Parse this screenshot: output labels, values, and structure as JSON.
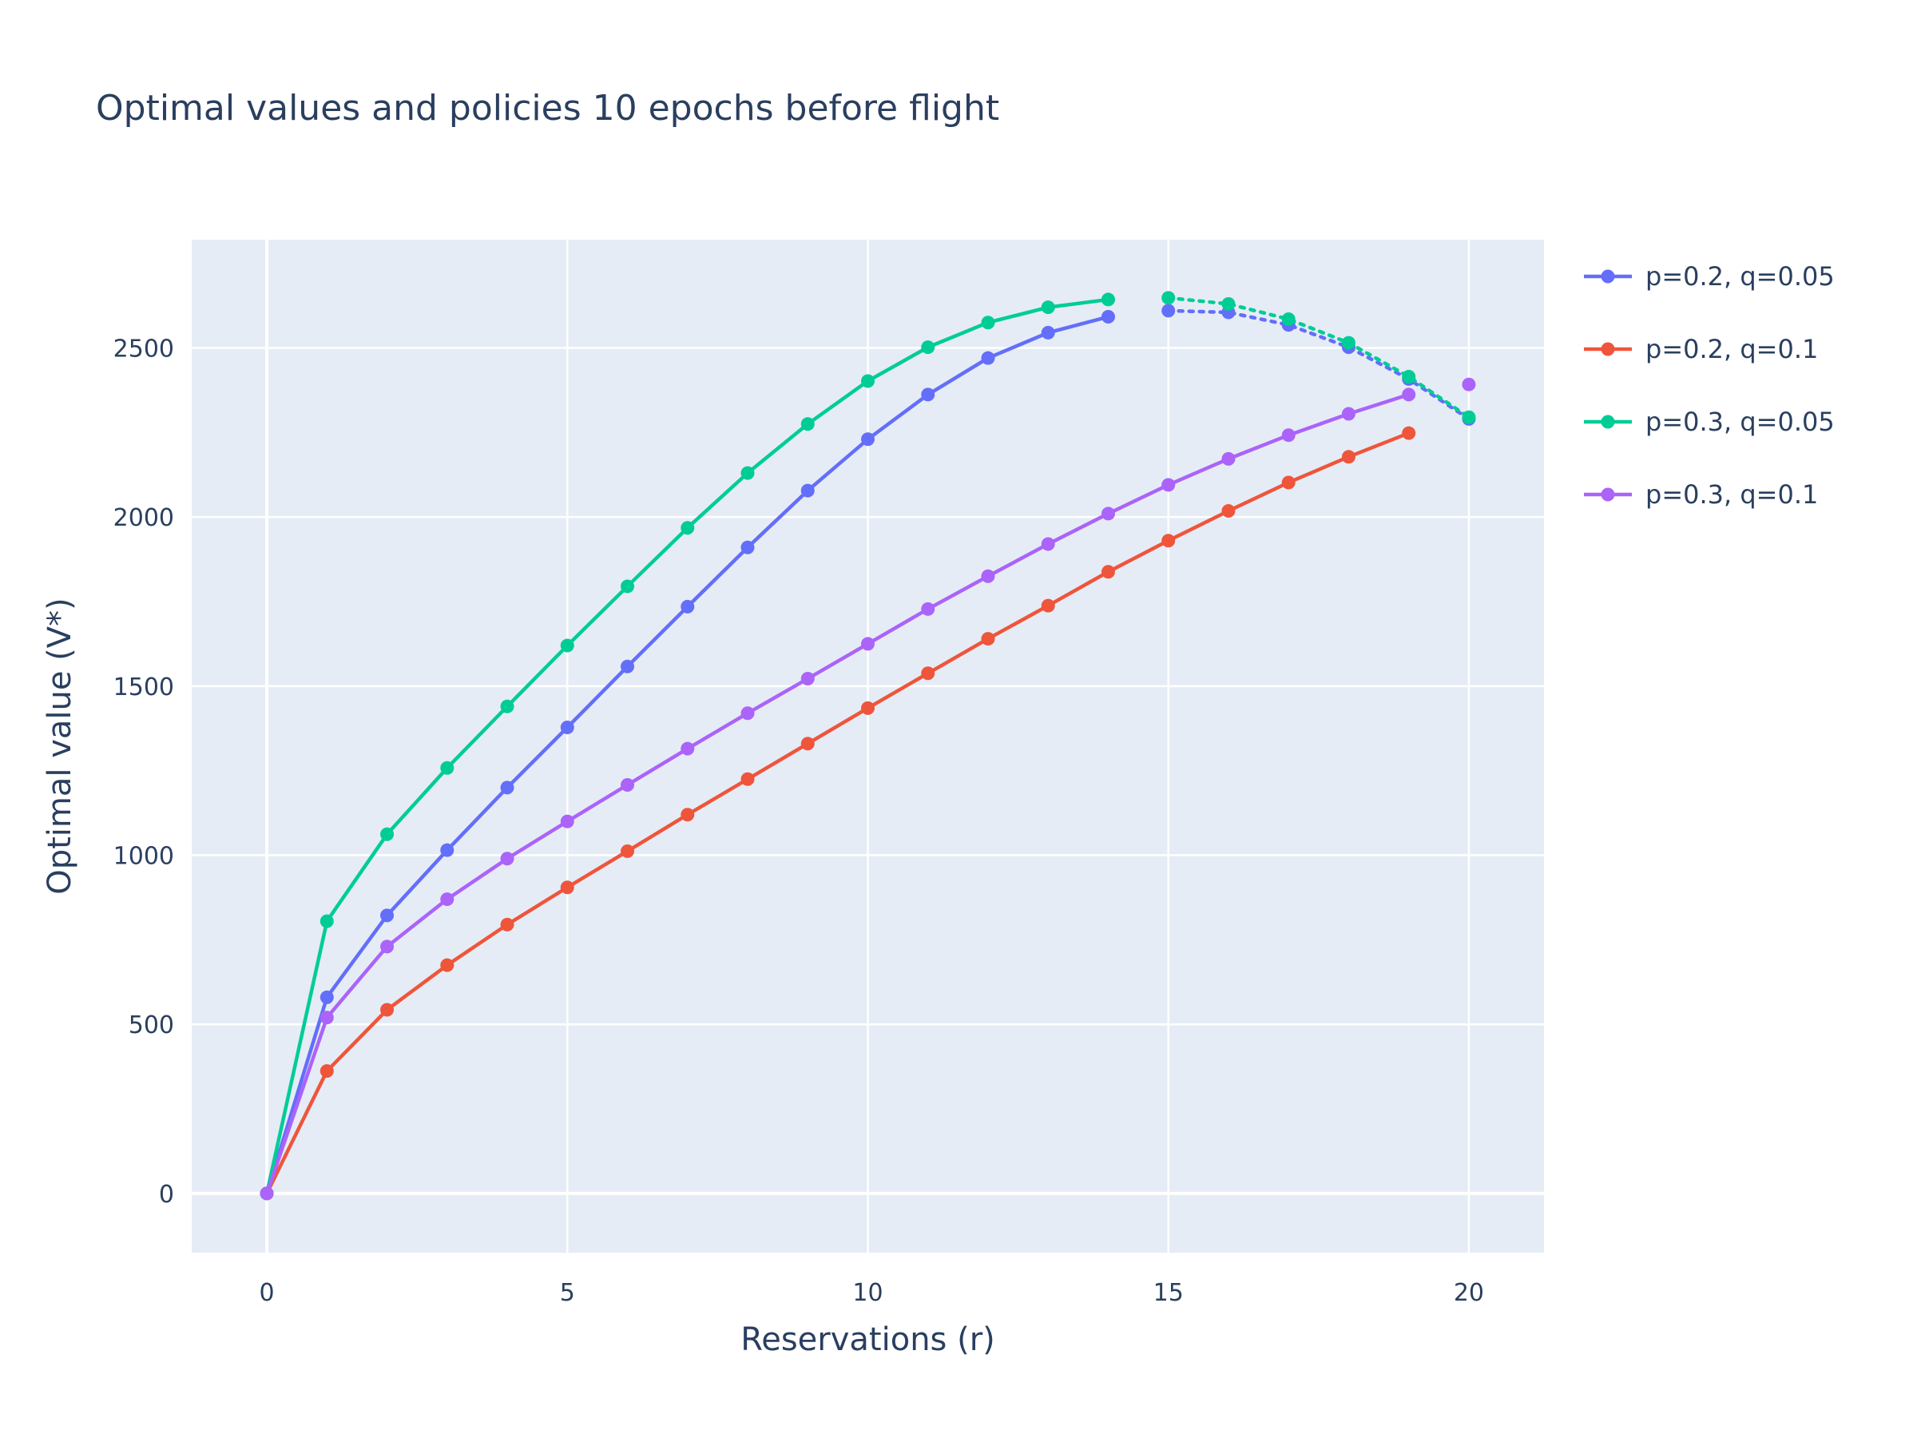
{
  "chart_data": {
    "type": "line",
    "title": "Optimal values and policies 10 epochs before flight",
    "xlabel": "Reservations (r)",
    "ylabel": "Optimal value (V*)",
    "xlim": [
      -1.25,
      21.25
    ],
    "ylim": [
      -175,
      2820
    ],
    "xticks": [
      0,
      5,
      10,
      15,
      20
    ],
    "yticks": [
      0,
      500,
      1000,
      1500,
      2000,
      2500
    ],
    "grid": true,
    "legend_position": "right",
    "series": [
      {
        "name": "p=0.2, q=0.05",
        "color": "#636efa",
        "x_solid": [
          0,
          1,
          2,
          3,
          4,
          5,
          6,
          7,
          8,
          9,
          10,
          11,
          12,
          13,
          14
        ],
        "y_solid": [
          0,
          580,
          822,
          1015,
          1200,
          1378,
          1558,
          1735,
          1910,
          2078,
          2230,
          2362,
          2470,
          2545,
          2592
        ],
        "x_dotted": [
          15,
          16,
          17,
          18,
          19,
          20
        ],
        "y_dotted": [
          2610,
          2605,
          2568,
          2502,
          2408,
          2290
        ]
      },
      {
        "name": "p=0.2, q=0.1",
        "color": "#ef553b",
        "x_solid": [
          0,
          1,
          2,
          3,
          4,
          5,
          6,
          7,
          8,
          9,
          10,
          11,
          12,
          13,
          14,
          15,
          16,
          17,
          18,
          19
        ],
        "y_solid": [
          0,
          362,
          543,
          675,
          795,
          905,
          1012,
          1120,
          1225,
          1330,
          1435,
          1538,
          1640,
          1738,
          1838,
          1930,
          2018,
          2102,
          2178,
          2248
        ],
        "x_dotted": [],
        "y_dotted": []
      },
      {
        "name": "p=0.3, q=0.05",
        "color": "#00cc96",
        "x_solid": [
          0,
          1,
          2,
          3,
          4,
          5,
          6,
          7,
          8,
          9,
          10,
          11,
          12,
          13,
          14
        ],
        "y_solid": [
          0,
          805,
          1062,
          1258,
          1440,
          1620,
          1795,
          1968,
          2130,
          2275,
          2402,
          2502,
          2575,
          2620,
          2643
        ],
        "x_dotted": [
          15,
          16,
          17,
          18,
          19,
          20
        ],
        "y_dotted": [
          2648,
          2630,
          2585,
          2515,
          2415,
          2295
        ]
      },
      {
        "name": "p=0.3, q=0.1",
        "color": "#ab63fa",
        "x_solid": [
          0,
          1,
          2,
          3,
          4,
          5,
          6,
          7,
          8,
          9,
          10,
          11,
          12,
          13,
          14,
          15,
          16,
          17,
          18,
          19
        ],
        "y_solid": [
          0,
          520,
          730,
          870,
          990,
          1100,
          1208,
          1315,
          1420,
          1522,
          1625,
          1728,
          1825,
          1920,
          2010,
          2095,
          2172,
          2242,
          2305,
          2362
        ],
        "x_dotted": [
          20
        ],
        "y_dotted": [
          2392
        ]
      }
    ]
  }
}
